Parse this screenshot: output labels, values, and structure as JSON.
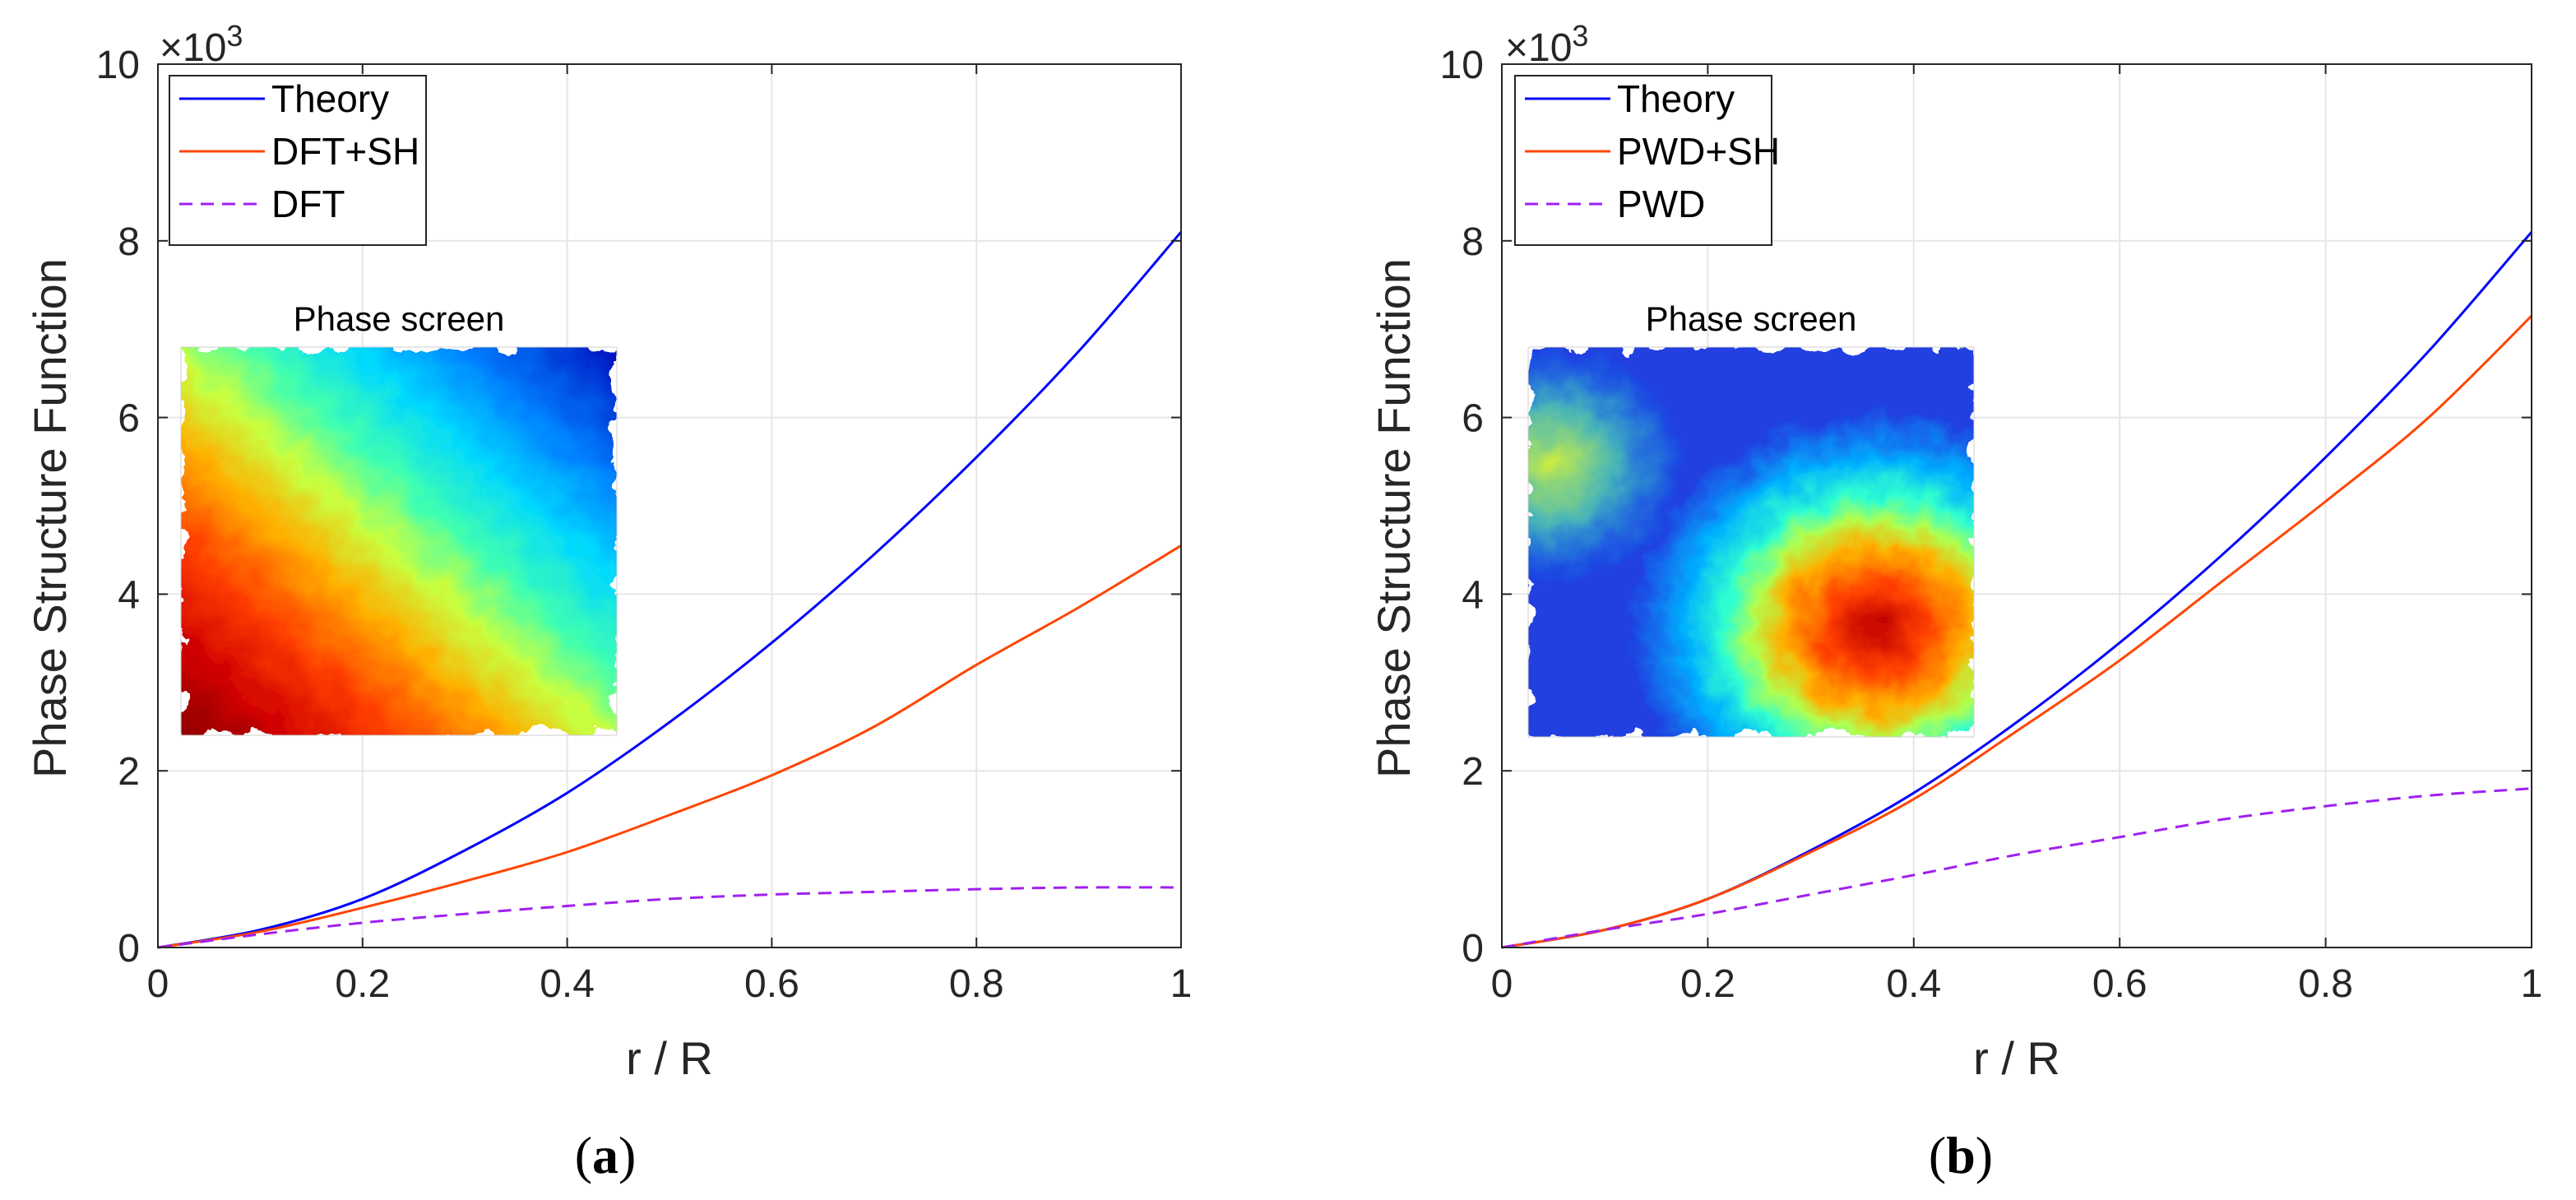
{
  "chart_data": [
    {
      "panel": "(a)",
      "caption_open": "(",
      "caption_letter": "a",
      "caption_close": ")",
      "type": "line",
      "xlabel": "r / R",
      "ylabel": "Phase Structure Function",
      "exponent_label": "×10",
      "exponent_power": "3",
      "xlim": [
        0,
        1
      ],
      "ylim": [
        0,
        10
      ],
      "xticks": [
        0,
        0.2,
        0.4,
        0.6,
        0.8,
        1
      ],
      "xtick_labels": [
        "0",
        "0.2",
        "0.4",
        "0.6",
        "0.8",
        "1"
      ],
      "yticks": [
        0,
        2,
        4,
        6,
        8,
        10
      ],
      "ytick_labels": [
        "0",
        "2",
        "4",
        "6",
        "8",
        "10"
      ],
      "grid": true,
      "legend_position": "top-left",
      "inset_title": "Phase screen",
      "series": [
        {
          "name": "Theory",
          "color": "#0000ff",
          "style": "solid",
          "x": [
            0,
            0.1,
            0.2,
            0.3,
            0.4,
            0.5,
            0.6,
            0.7,
            0.8,
            0.9,
            1.0
          ],
          "y": [
            0,
            0.2,
            0.55,
            1.1,
            1.75,
            2.55,
            3.45,
            4.45,
            5.55,
            6.75,
            8.1
          ]
        },
        {
          "name": "DFT+SH",
          "color": "#ff4500",
          "style": "solid",
          "x": [
            0,
            0.1,
            0.2,
            0.3,
            0.4,
            0.5,
            0.6,
            0.7,
            0.8,
            0.9,
            1.0
          ],
          "y": [
            0,
            0.18,
            0.45,
            0.75,
            1.08,
            1.5,
            1.95,
            2.5,
            3.2,
            3.85,
            4.55
          ]
        },
        {
          "name": "DFT",
          "color": "#a020f0",
          "style": "dashed",
          "x": [
            0,
            0.1,
            0.2,
            0.3,
            0.4,
            0.5,
            0.6,
            0.7,
            0.8,
            0.9,
            1.0
          ],
          "y": [
            0,
            0.15,
            0.28,
            0.38,
            0.47,
            0.55,
            0.6,
            0.63,
            0.66,
            0.68,
            0.68
          ]
        }
      ]
    },
    {
      "panel": "(b)",
      "caption_open": "(",
      "caption_letter": "b",
      "caption_close": ")",
      "type": "line",
      "xlabel": "r / R",
      "ylabel": "Phase Structure Function",
      "exponent_label": "×10",
      "exponent_power": "3",
      "xlim": [
        0,
        1
      ],
      "ylim": [
        0,
        10
      ],
      "xticks": [
        0,
        0.2,
        0.4,
        0.6,
        0.8,
        1
      ],
      "xtick_labels": [
        "0",
        "0.2",
        "0.4",
        "0.6",
        "0.8",
        "1"
      ],
      "yticks": [
        0,
        2,
        4,
        6,
        8,
        10
      ],
      "ytick_labels": [
        "0",
        "2",
        "4",
        "6",
        "8",
        "10"
      ],
      "grid": true,
      "legend_position": "top-left",
      "inset_title": "Phase screen",
      "series": [
        {
          "name": "Theory",
          "color": "#0000ff",
          "style": "solid",
          "x": [
            0,
            0.1,
            0.2,
            0.3,
            0.4,
            0.5,
            0.6,
            0.7,
            0.8,
            0.9,
            1.0
          ],
          "y": [
            0,
            0.2,
            0.55,
            1.1,
            1.75,
            2.55,
            3.45,
            4.45,
            5.55,
            6.75,
            8.1
          ]
        },
        {
          "name": "PWD+SH",
          "color": "#ff4500",
          "style": "solid",
          "x": [
            0,
            0.1,
            0.2,
            0.3,
            0.4,
            0.5,
            0.6,
            0.7,
            0.8,
            0.9,
            1.0
          ],
          "y": [
            0,
            0.2,
            0.55,
            1.08,
            1.68,
            2.45,
            3.25,
            4.15,
            5.05,
            6.0,
            7.15
          ]
        },
        {
          "name": "PWD",
          "color": "#a020f0",
          "style": "dashed",
          "x": [
            0,
            0.1,
            0.2,
            0.3,
            0.4,
            0.5,
            0.6,
            0.7,
            0.8,
            0.9,
            1.0
          ],
          "y": [
            0,
            0.2,
            0.38,
            0.6,
            0.82,
            1.05,
            1.25,
            1.45,
            1.6,
            1.72,
            1.8
          ]
        }
      ]
    }
  ]
}
